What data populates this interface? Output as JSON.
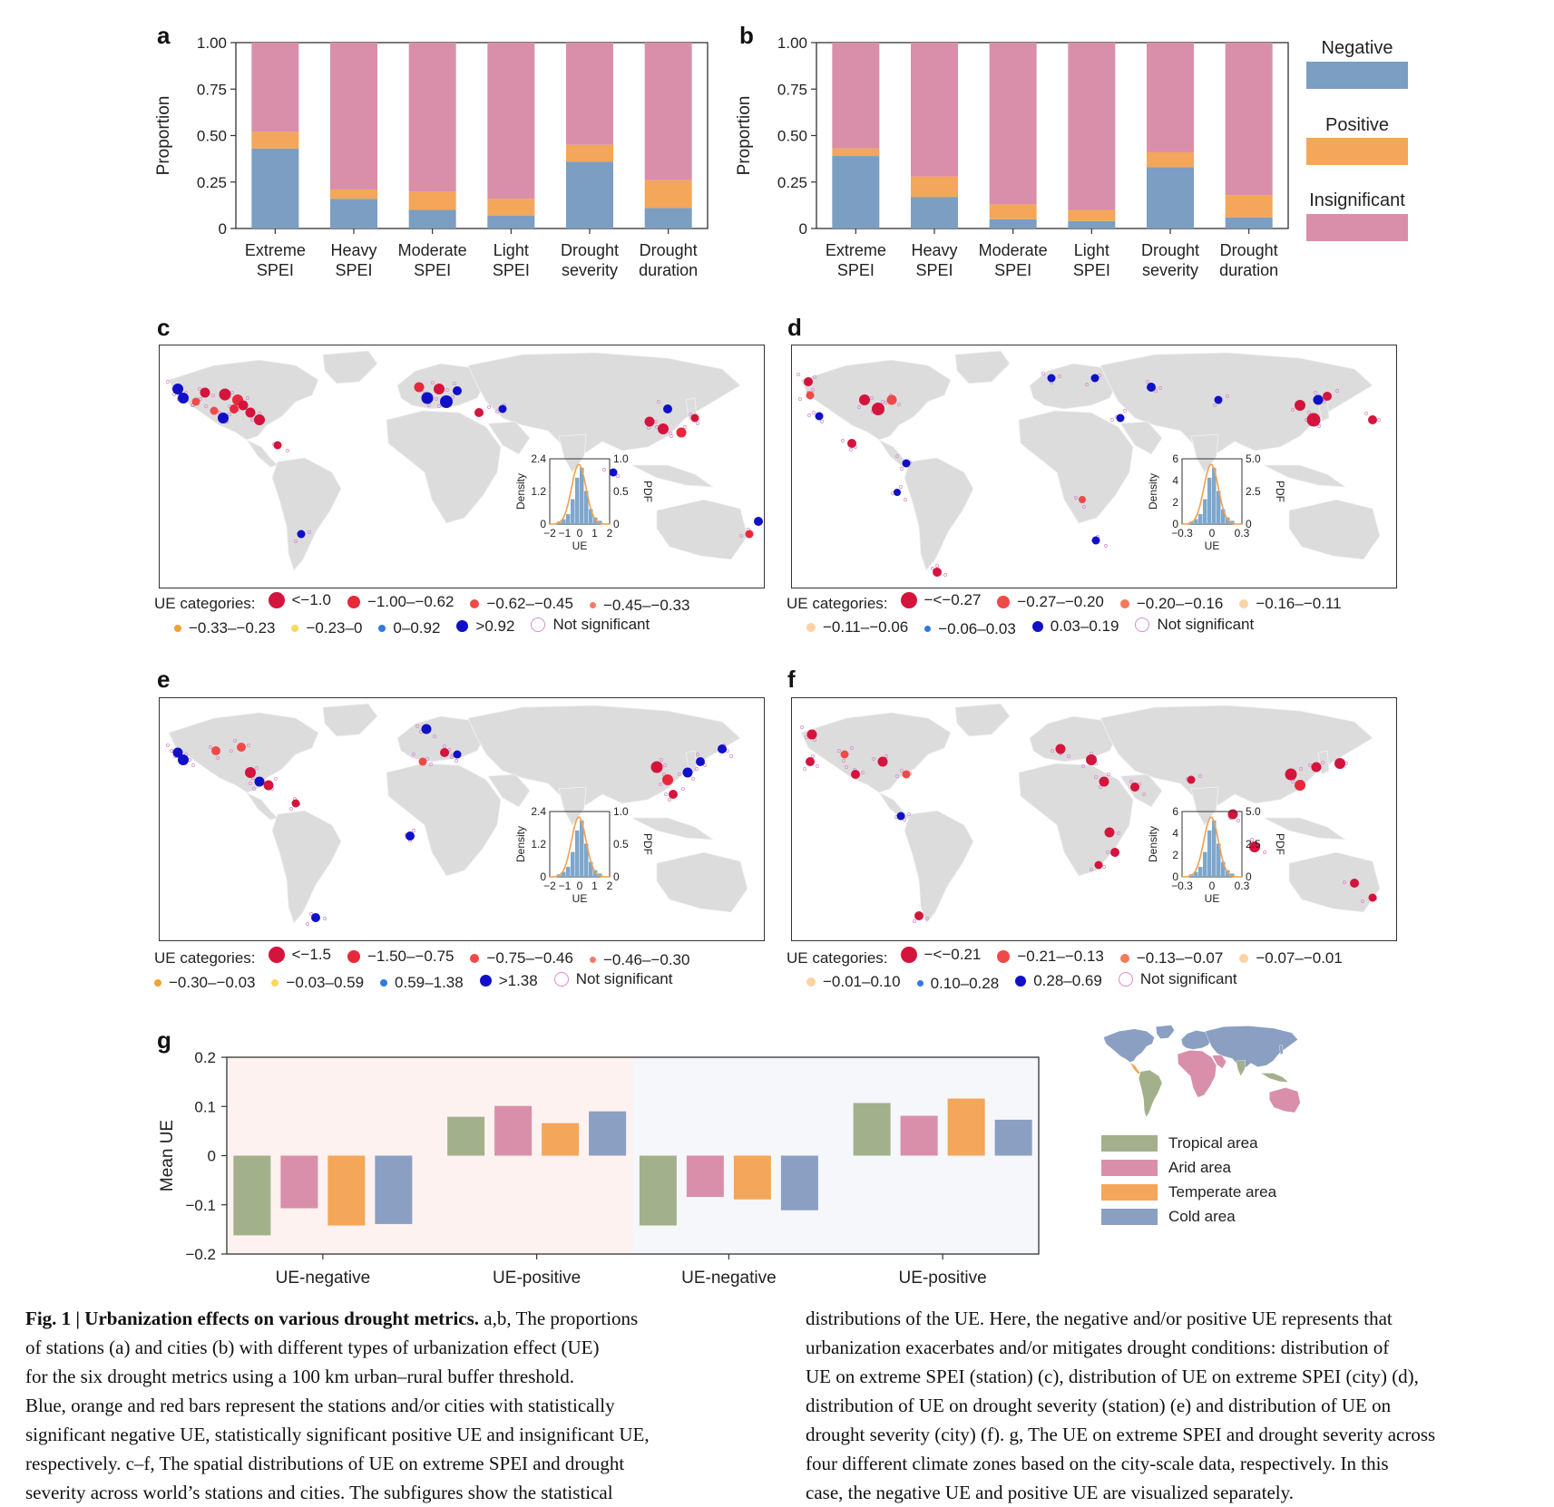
{
  "colors": {
    "negative": "#7b9ec2",
    "positive": "#f4a65a",
    "insignificant": "#d98faa",
    "tropical": "#a3b08c",
    "arid": "#d98faa",
    "temperate": "#f4a65a",
    "cold": "#8a9fc2",
    "land": "#dcdcdc"
  },
  "panels": {
    "a": "a",
    "b": "b",
    "c": "c",
    "d": "d",
    "e": "e",
    "f": "f",
    "g": "g"
  },
  "ab_legend": {
    "negative": "Negative",
    "positive": "Positive",
    "insignificant": "Insignificant"
  },
  "chart_data": [
    {
      "panel": "a",
      "type": "bar",
      "stacked": true,
      "ylabel": "Proportion",
      "ylim": [
        0,
        1
      ],
      "yticks": [
        "0",
        "0.25",
        "0.50",
        "0.75",
        "1.00"
      ],
      "categories": [
        [
          "Extreme",
          "SPEI"
        ],
        [
          "Heavy",
          "SPEI"
        ],
        [
          "Moderate",
          "SPEI"
        ],
        [
          "Light",
          "SPEI"
        ],
        [
          "Drought",
          "severity"
        ],
        [
          "Drought",
          "duration"
        ]
      ],
      "series": [
        {
          "name": "Negative",
          "values": [
            0.43,
            0.16,
            0.1,
            0.07,
            0.36,
            0.11
          ]
        },
        {
          "name": "Positive",
          "values": [
            0.09,
            0.05,
            0.1,
            0.09,
            0.09,
            0.15
          ]
        },
        {
          "name": "Insignificant",
          "values": [
            0.48,
            0.79,
            0.8,
            0.84,
            0.55,
            0.74
          ]
        }
      ]
    },
    {
      "panel": "b",
      "type": "bar",
      "stacked": true,
      "ylabel": "Proportion",
      "ylim": [
        0,
        1
      ],
      "yticks": [
        "0",
        "0.25",
        "0.50",
        "0.75",
        "1.00"
      ],
      "categories": [
        [
          "Extreme",
          "SPEI"
        ],
        [
          "Heavy",
          "SPEI"
        ],
        [
          "Moderate",
          "SPEI"
        ],
        [
          "Light",
          "SPEI"
        ],
        [
          "Drought",
          "severity"
        ],
        [
          "Drought",
          "duration"
        ]
      ],
      "series": [
        {
          "name": "Negative",
          "values": [
            0.39,
            0.17,
            0.05,
            0.04,
            0.33,
            0.06
          ]
        },
        {
          "name": "Positive",
          "values": [
            0.04,
            0.11,
            0.08,
            0.06,
            0.08,
            0.12
          ]
        },
        {
          "name": "Insignificant",
          "values": [
            0.57,
            0.72,
            0.87,
            0.9,
            0.59,
            0.82
          ]
        }
      ]
    },
    {
      "panel": "g",
      "type": "bar",
      "ylabel": "Mean UE",
      "ylim": [
        -0.2,
        0.2
      ],
      "yticks": [
        "−0.2",
        "−0.1",
        "0",
        "0.1",
        "0.2"
      ],
      "groups": [
        "UE-negative",
        "UE-positive",
        "UE-negative",
        "UE-positive"
      ],
      "series": [
        {
          "name": "Tropical area",
          "values": [
            -0.162,
            0.079,
            -0.142,
            0.107
          ]
        },
        {
          "name": "Arid area",
          "values": [
            -0.107,
            0.101,
            -0.084,
            0.081
          ]
        },
        {
          "name": "Temperate area",
          "values": [
            -0.142,
            0.066,
            -0.089,
            0.116
          ]
        },
        {
          "name": "Cold area",
          "values": [
            -0.139,
            0.09,
            -0.111,
            0.073
          ]
        }
      ]
    }
  ],
  "maps": {
    "c": {
      "inset": {
        "left_axis": "Density",
        "right_axis": "PDF",
        "xlabel": "UE",
        "yticks_left": [
          "0",
          "1.2",
          "2.4"
        ],
        "yticks_right": [
          "0",
          "0.5",
          "1.0"
        ],
        "xticks": [
          "−2",
          "−1",
          "0",
          "1",
          "2"
        ]
      },
      "legend_title": "UE categories:",
      "legend": [
        {
          "label": "<−1.0",
          "color": "#d4143c",
          "size": 18
        },
        {
          "label": "−1.00–−0.62",
          "color": "#e8283a",
          "size": 14
        },
        {
          "label": "−0.62–−0.45",
          "color": "#ef4a48",
          "size": 10
        },
        {
          "label": "−0.45–−0.33",
          "color": "#f47a68",
          "size": 7
        },
        {
          "label": "−0.33–−0.23",
          "color": "#f5a030",
          "size": 8
        },
        {
          "label": "−0.23–0",
          "color": "#f7d860",
          "size": 8
        },
        {
          "label": "0–0.92",
          "color": "#2f7be0",
          "size": 8
        },
        {
          "label": ">0.92",
          "color": "#1010c8",
          "size": 13
        },
        {
          "label": "Not significant",
          "color": "none",
          "size": 14
        }
      ]
    },
    "d": {
      "inset": {
        "left_axis": "Density",
        "right_axis": "PDF",
        "xlabel": "UE",
        "yticks_left": [
          "0",
          "2",
          "4",
          "6"
        ],
        "yticks_right": [
          "0",
          "2.5",
          "5.0"
        ],
        "xticks": [
          "−0.3",
          "0",
          "0.3"
        ]
      },
      "legend_title": "UE categories:",
      "legend": [
        {
          "label": "−<−0.27",
          "color": "#d4143c",
          "size": 18
        },
        {
          "label": "−0.27–−0.20",
          "color": "#ef4a48",
          "size": 14
        },
        {
          "label": "−0.20–−0.16",
          "color": "#f47a5a",
          "size": 10
        },
        {
          "label": "−0.16–−0.11",
          "color": "#fbd3a6",
          "size": 10
        },
        {
          "label": "−0.11–−0.06",
          "color": "#fbd3a6",
          "size": 10
        },
        {
          "label": "−0.06–0.03",
          "color": "#2f7be0",
          "size": 7
        },
        {
          "label": "0.03–0.19",
          "color": "#1010c8",
          "size": 12
        },
        {
          "label": "Not significant",
          "color": "none",
          "size": 14
        }
      ]
    },
    "e": {
      "inset": {
        "left_axis": "Density",
        "right_axis": "PDF",
        "xlabel": "UE",
        "yticks_left": [
          "0",
          "1.2",
          "2.4"
        ],
        "yticks_right": [
          "0",
          "0.5",
          "1.0"
        ],
        "xticks": [
          "−2",
          "−1",
          "0",
          "1",
          "2"
        ]
      },
      "legend_title": "UE categories:",
      "legend": [
        {
          "label": "<−1.5",
          "color": "#d4143c",
          "size": 18
        },
        {
          "label": "−1.50–−0.75",
          "color": "#e8283a",
          "size": 14
        },
        {
          "label": "−0.75–−0.46",
          "color": "#ef4a48",
          "size": 10
        },
        {
          "label": "−0.46–−0.30",
          "color": "#f47a68",
          "size": 7
        },
        {
          "label": "−0.30–−0.03",
          "color": "#f5a030",
          "size": 8
        },
        {
          "label": "−0.03–0.59",
          "color": "#f7d860",
          "size": 8
        },
        {
          "label": "0.59–1.38",
          "color": "#2f7be0",
          "size": 8
        },
        {
          "label": ">1.38",
          "color": "#1010c8",
          "size": 13
        },
        {
          "label": "Not significant",
          "color": "none",
          "size": 14
        }
      ]
    },
    "f": {
      "inset": {
        "left_axis": "Density",
        "right_axis": "PDF",
        "xlabel": "UE",
        "yticks_left": [
          "0",
          "2",
          "4",
          "6"
        ],
        "yticks_right": [
          "0",
          "2.5",
          "5.0"
        ],
        "xticks": [
          "−0.3",
          "0",
          "0.3"
        ]
      },
      "legend_title": "UE categories:",
      "legend": [
        {
          "label": "−<−0.21",
          "color": "#d4143c",
          "size": 18
        },
        {
          "label": "−0.21–−0.13",
          "color": "#ef4a48",
          "size": 14
        },
        {
          "label": "−0.13–−0.07",
          "color": "#f47a5a",
          "size": 10
        },
        {
          "label": "−0.07–−0.01",
          "color": "#fbd3a6",
          "size": 10
        },
        {
          "label": "−0.01–0.10",
          "color": "#fbd3a6",
          "size": 10
        },
        {
          "label": "0.10–0.28",
          "color": "#2f7be0",
          "size": 7
        },
        {
          "label": "0.28–0.69",
          "color": "#1010c8",
          "size": 12
        },
        {
          "label": "Not significant",
          "color": "none",
          "size": 14
        }
      ]
    }
  },
  "g_legend": [
    "Tropical area",
    "Arid area",
    "Temperate area",
    "Cold area"
  ],
  "caption": {
    "fig": "Fig. 1 | ",
    "title": "Urbanization effects on various drought metrics.",
    "left_lines": [
      " a,b, The proportions",
      "of stations (a) and cities (b) with different types of urbanization effect (UE)",
      "for the six drought metrics using a 100 km urban–rural buffer threshold.",
      "Blue, orange and red bars represent the stations and/or cities with statistically",
      "significant negative UE, statistically significant positive UE and insignificant UE,",
      "respectively. c–f, The spatial distributions of UE on extreme SPEI and drought",
      "severity across world’s stations and cities. The subfigures show the statistical"
    ],
    "right_lines": [
      "distributions of the UE. Here, the negative and/or positive UE represents that",
      "urbanization exacerbates and/or mitigates drought conditions: distribution of",
      "UE on extreme SPEI (station) (c), distribution of UE on extreme SPEI (city) (d),",
      "distribution of UE on drought severity (station) (e) and distribution of UE on",
      "drought severity (city) (f). g, The UE on extreme SPEI and drought severity across",
      "four different climate zones based on the city-scale data, respectively. In this",
      "case, the negative UE and positive UE are visualized separately."
    ]
  }
}
